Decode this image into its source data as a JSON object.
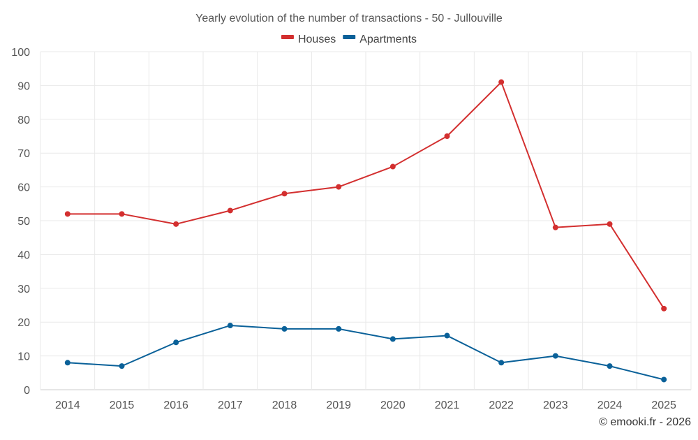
{
  "chart_data": {
    "type": "line",
    "title": "Yearly evolution of the number of transactions - 50 - Jullouville",
    "categories": [
      "2014",
      "2015",
      "2016",
      "2017",
      "2018",
      "2019",
      "2020",
      "2021",
      "2022",
      "2023",
      "2024",
      "2025"
    ],
    "series": [
      {
        "name": "Houses",
        "color": "#d32f2f",
        "values": [
          52,
          52,
          49,
          53,
          58,
          60,
          66,
          75,
          91,
          48,
          49,
          24
        ]
      },
      {
        "name": "Apartments",
        "color": "#0a6199",
        "values": [
          8,
          7,
          14,
          19,
          18,
          18,
          15,
          16,
          8,
          10,
          7,
          3
        ]
      }
    ],
    "ylim": [
      0,
      100
    ],
    "yticks": [
      0,
      10,
      20,
      30,
      40,
      50,
      60,
      70,
      80,
      90,
      100
    ],
    "xlabel": "",
    "ylabel": "",
    "grid": true,
    "legend_position": "top-center"
  },
  "credit": "© emooki.fr - 2026"
}
